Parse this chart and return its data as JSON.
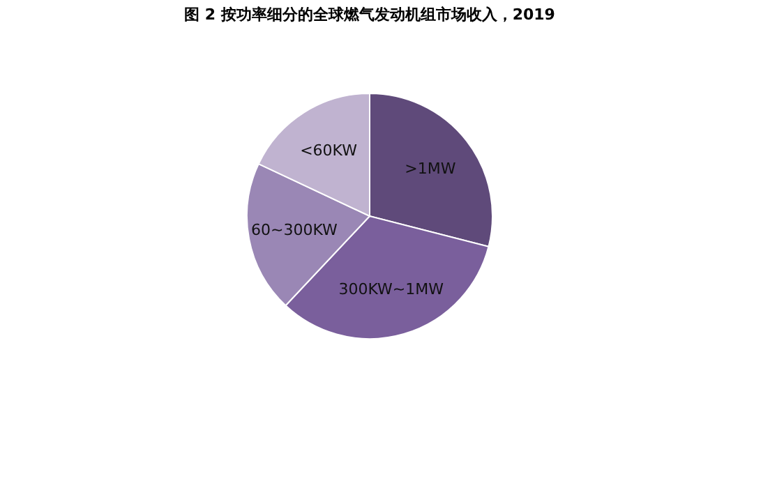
{
  "chart_data": {
    "type": "pie",
    "title": "图 2  按功率细分的全球燃气发动机组市场收入，2019",
    "categories": [
      ">1MW",
      "300KW~1MW",
      "60~300KW",
      "<60KW"
    ],
    "values": [
      29,
      33,
      20,
      18
    ],
    "colors": [
      "#5f4a7a",
      "#7a5f9c",
      "#9a87b5",
      "#c0b3d0"
    ],
    "legend": false
  }
}
